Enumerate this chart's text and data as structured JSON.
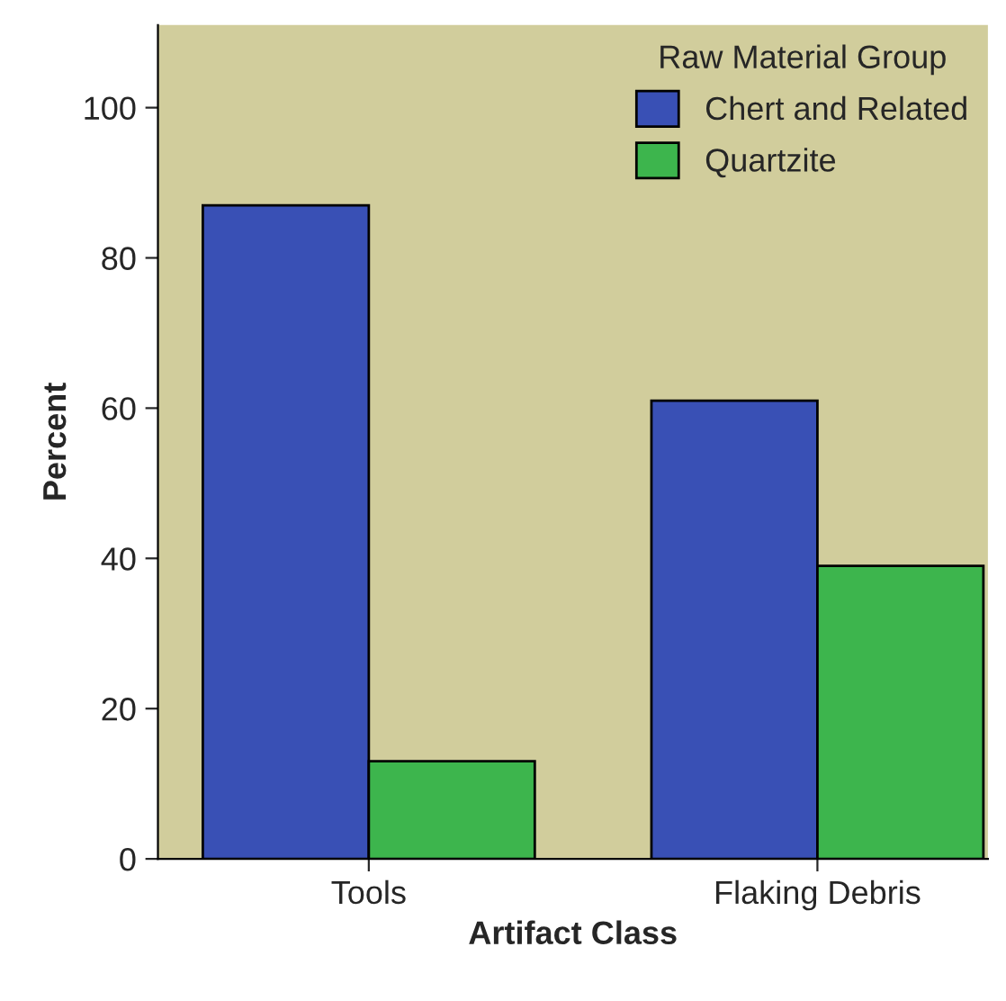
{
  "chart_data": {
    "type": "bar",
    "xlabel": "Artifact Class",
    "ylabel": "Percent",
    "legend_title": "Raw Material Group",
    "categories": [
      "Tools",
      "Flaking Debris"
    ],
    "series": [
      {
        "name": "Chert and Related",
        "color": "#3950b5",
        "values": [
          87,
          61
        ]
      },
      {
        "name": "Quartzite",
        "color": "#3db54d",
        "values": [
          13,
          39
        ]
      }
    ],
    "ylim": [
      0,
      111
    ],
    "yticks": [
      0,
      20,
      40,
      60,
      80,
      100
    ],
    "grid": false,
    "legend": "top right"
  }
}
